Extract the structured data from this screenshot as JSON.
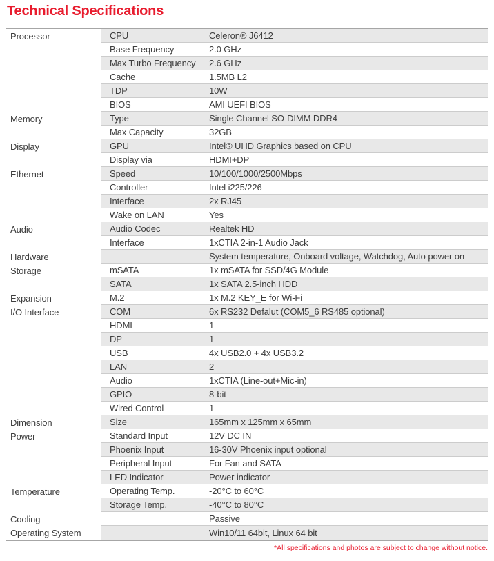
{
  "page": {
    "title": "Technical Specifications",
    "footnote": "*All specifications and photos are subject to change without notice."
  },
  "colors": {
    "accent_red": "#e81c2e",
    "stripe_gray": "#e8e8e8",
    "row_separator": "#cccccc",
    "table_border": "#a6a6a6",
    "text": "#3d3d3d"
  },
  "table": {
    "rows": [
      {
        "category": "Processor",
        "label": "CPU",
        "value": "Celeron® J6412"
      },
      {
        "category": "",
        "label": "Base Frequency",
        "value": "2.0 GHz"
      },
      {
        "category": "",
        "label": "Max Turbo Frequency",
        "value": "2.6 GHz"
      },
      {
        "category": "",
        "label": "Cache",
        "value": "1.5MB L2"
      },
      {
        "category": "",
        "label": "TDP",
        "value": "10W"
      },
      {
        "category": "",
        "label": "BIOS",
        "value": "AMI UEFI BIOS"
      },
      {
        "category": "Memory",
        "label": "Type",
        "value": "Single Channel SO-DIMM DDR4"
      },
      {
        "category": "",
        "label": "Max Capacity",
        "value": "32GB"
      },
      {
        "category": "Display",
        "label": "GPU",
        "value": "Intel® UHD Graphics based on CPU"
      },
      {
        "category": "",
        "label": "Display via",
        "value": "HDMI+DP"
      },
      {
        "category": "Ethernet",
        "label": "Speed",
        "value": "10/100/1000/2500Mbps"
      },
      {
        "category": "",
        "label": "Controller",
        "value": "Intel i225/226"
      },
      {
        "category": "",
        "label": "Interface",
        "value": "2x RJ45"
      },
      {
        "category": "",
        "label": "Wake on LAN",
        "value": "Yes"
      },
      {
        "category": "Audio",
        "label": "Audio Codec",
        "value": "Realtek HD"
      },
      {
        "category": "",
        "label": "Interface",
        "value": "1xCTIA 2-in-1 Audio Jack"
      },
      {
        "category": "Hardware",
        "label": "",
        "value": "System temperature, Onboard voltage, Watchdog, Auto power on"
      },
      {
        "category": "Storage",
        "label": "mSATA",
        "value": "1x mSATA for SSD/4G Module"
      },
      {
        "category": "",
        "label": "SATA",
        "value": "1x SATA 2.5-inch HDD"
      },
      {
        "category": "Expansion",
        "label": "M.2",
        "value": "1x M.2 KEY_E for Wi-Fi"
      },
      {
        "category": "I/O Interface",
        "label": "COM",
        "value": "6x RS232 Defalut (COM5_6 RS485 optional)"
      },
      {
        "category": "",
        "label": "HDMI",
        "value": "1"
      },
      {
        "category": "",
        "label": "DP",
        "value": "1"
      },
      {
        "category": "",
        "label": "USB",
        "value": "4x USB2.0 + 4x USB3.2"
      },
      {
        "category": "",
        "label": "LAN",
        "value": "2"
      },
      {
        "category": "",
        "label": "Audio",
        "value": "1xCTIA (Line-out+Mic-in)"
      },
      {
        "category": "",
        "label": "GPIO",
        "value": "8-bit"
      },
      {
        "category": "",
        "label": "Wired Control",
        "value": "1"
      },
      {
        "category": "Dimension",
        "label": "Size",
        "value": "165mm x 125mm x 65mm"
      },
      {
        "category": "Power",
        "label": "Standard Input",
        "value": "12V DC IN"
      },
      {
        "category": "",
        "label": "Phoenix Input",
        "value": "16-30V Phoenix input optional"
      },
      {
        "category": "",
        "label": "Peripheral Input",
        "value": "For Fan and SATA"
      },
      {
        "category": "",
        "label": "LED Indicator",
        "value": "Power indicator"
      },
      {
        "category": "Temperature",
        "label": "Operating Temp.",
        "value": "-20°C to 60°C"
      },
      {
        "category": "",
        "label": "Storage Temp.",
        "value": "-40°C to 80°C"
      },
      {
        "category": "Cooling",
        "label": "",
        "value": "Passive"
      },
      {
        "category": "Operating System",
        "label": "",
        "value": "Win10/11 64bit, Linux 64 bit"
      }
    ]
  }
}
